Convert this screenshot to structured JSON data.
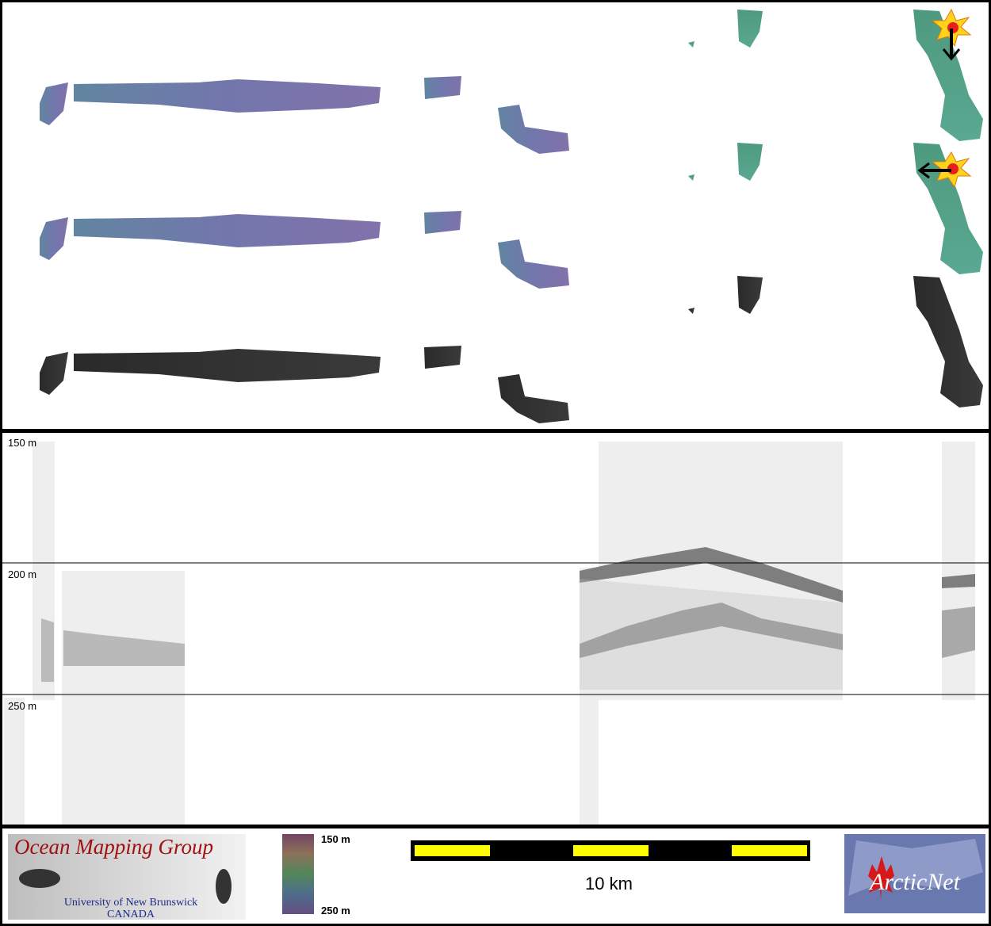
{
  "profile": {
    "depth_labels": [
      "150 m",
      "200 m",
      "250 m"
    ]
  },
  "logo_omg": {
    "title": "Ocean Mapping Group",
    "line1": "University of New Brunswick",
    "line2": "CANADA"
  },
  "colorbar": {
    "top": "150 m",
    "bottom": "250 m"
  },
  "scale_bar": {
    "label": "10 km"
  },
  "logo_arcticnet": {
    "text": "ArcticNet"
  }
}
